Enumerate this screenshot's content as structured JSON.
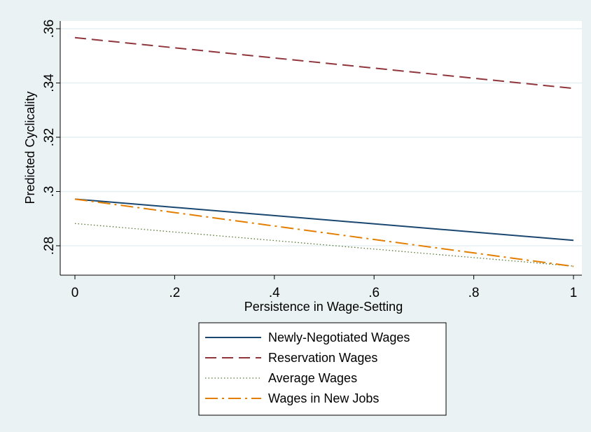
{
  "chart_data": {
    "type": "line",
    "title": "",
    "xlabel": "Persistence in Wage-Setting",
    "ylabel": "Predicted Cyclicality",
    "xlim": [
      0,
      1
    ],
    "ylim": [
      0.27,
      0.36
    ],
    "x_ticks": [
      0,
      0.2,
      0.4,
      0.6,
      0.8,
      1
    ],
    "x_tick_labels": [
      "0",
      ".2",
      ".4",
      ".6",
      ".8",
      "1"
    ],
    "y_ticks": [
      0.28,
      0.3,
      0.32,
      0.34,
      0.36
    ],
    "y_tick_labels": [
      ".28",
      ".3",
      ".32",
      ".34",
      ".36"
    ],
    "grid": true,
    "legend_position": "bottom",
    "background_color": "#eaf2f3",
    "plot_background_color": "#ffffff",
    "grid_color": "#e6eff2",
    "series": [
      {
        "name": "Newly-Negotiated Wages",
        "color": "#1a476f",
        "style": "solid",
        "x": [
          0,
          1
        ],
        "y": [
          0.2972,
          0.282
        ]
      },
      {
        "name": "Reservation Wages",
        "color": "#90353b",
        "style": "dashed",
        "x": [
          0,
          1
        ],
        "y": [
          0.3567,
          0.338
        ]
      },
      {
        "name": "Average Wages",
        "color": "#55752f",
        "style": "dotted",
        "x": [
          0,
          1
        ],
        "y": [
          0.2882,
          0.2725
        ]
      },
      {
        "name": "Wages in New Jobs",
        "color": "#e37e00",
        "style": "dashdot",
        "x": [
          0,
          1
        ],
        "y": [
          0.2972,
          0.2724
        ]
      }
    ]
  }
}
